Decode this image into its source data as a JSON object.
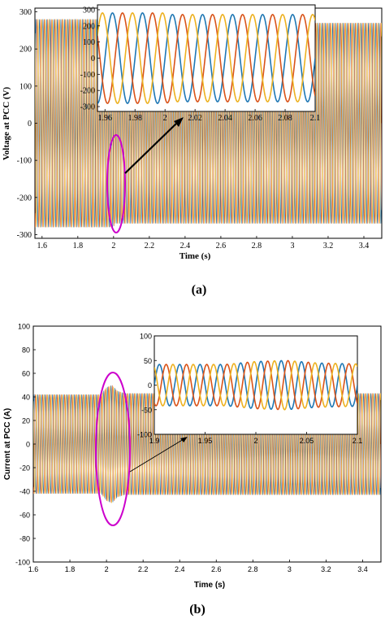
{
  "chart_data": [
    {
      "type": "line",
      "panel": "(a)",
      "caption": "(a)",
      "xlabel": "Time (s)",
      "ylabel": "Voltage at PCC (V)",
      "xlim": [
        1.56,
        3.5
      ],
      "ylim": [
        -310,
        310
      ],
      "x_ticks": [
        "1.6",
        "1.8",
        "2",
        "2.2",
        "2.4",
        "2.6",
        "2.8",
        "3",
        "3.2",
        "3.4"
      ],
      "y_ticks": [
        "-300",
        "-200",
        "-100",
        "0",
        "100",
        "200",
        "300"
      ],
      "frequency_hz": 50,
      "phase_shifts_deg": [
        0,
        -120,
        120
      ],
      "series": [
        {
          "color": "#1f77b4",
          "values": [
            [
              1.56,
              280
            ],
            [
              2.0,
              280
            ],
            [
              2.005,
              270
            ],
            [
              3.5,
              270
            ]
          ]
        },
        {
          "color": "#d95319",
          "values": [
            [
              1.56,
              280
            ],
            [
              2.0,
              280
            ],
            [
              2.005,
              270
            ],
            [
              3.5,
              270
            ]
          ]
        },
        {
          "color": "#edb120",
          "values": [
            [
              1.56,
              280
            ],
            [
              2.0,
              280
            ],
            [
              2.005,
              270
            ],
            [
              3.5,
              270
            ]
          ]
        }
      ],
      "inset": {
        "xlim": [
          1.955,
          2.1
        ],
        "ylim": [
          -330,
          330
        ],
        "x_ticks": [
          "1.96",
          "1.98",
          "2",
          "2.02",
          "2.04",
          "2.06",
          "2.08",
          "2.1"
        ],
        "y_ticks": [
          "-300",
          "-200",
          "-100",
          "0",
          "100",
          "200",
          "300"
        ]
      },
      "highlight_ellipse": {
        "color": "#cc00cc"
      }
    },
    {
      "type": "line",
      "panel": "(b)",
      "caption": "(b)",
      "xlabel": "Time (s)",
      "ylabel": "Current at PCC (A)",
      "xlim": [
        1.6,
        3.5
      ],
      "ylim": [
        -100,
        100
      ],
      "x_ticks": [
        "1.6",
        "1.8",
        "2",
        "2.2",
        "2.4",
        "2.6",
        "2.8",
        "3",
        "3.2",
        "3.4"
      ],
      "y_ticks": [
        "-100",
        "-80",
        "-60",
        "-40",
        "-20",
        "0",
        "20",
        "40",
        "60",
        "80",
        "100"
      ],
      "frequency_hz": 50,
      "phase_shifts_deg": [
        0,
        -120,
        120
      ],
      "series": [
        {
          "color": "#1f77b4",
          "values": [
            [
              1.6,
              42
            ],
            [
              1.97,
              42
            ],
            [
              2.0,
              48
            ],
            [
              2.03,
              50
            ],
            [
              2.06,
              45
            ],
            [
              2.1,
              43
            ],
            [
              3.5,
              43
            ]
          ]
        },
        {
          "color": "#d95319",
          "values": [
            [
              1.6,
              42
            ],
            [
              1.97,
              42
            ],
            [
              2.0,
              48
            ],
            [
              2.03,
              50
            ],
            [
              2.06,
              45
            ],
            [
              2.1,
              43
            ],
            [
              3.5,
              43
            ]
          ]
        },
        {
          "color": "#edb120",
          "values": [
            [
              1.6,
              42
            ],
            [
              1.97,
              42
            ],
            [
              2.0,
              48
            ],
            [
              2.03,
              50
            ],
            [
              2.06,
              45
            ],
            [
              2.1,
              43
            ],
            [
              3.5,
              43
            ]
          ]
        }
      ],
      "inset": {
        "xlim": [
          1.9,
          2.1
        ],
        "ylim": [
          -100,
          100
        ],
        "x_ticks": [
          "1.9",
          "1.95",
          "2",
          "2.05",
          "2.1"
        ],
        "y_ticks": [
          "-100",
          "-50",
          "0",
          "50",
          "100"
        ]
      },
      "highlight_ellipse": {
        "color": "#cc00cc"
      }
    }
  ]
}
